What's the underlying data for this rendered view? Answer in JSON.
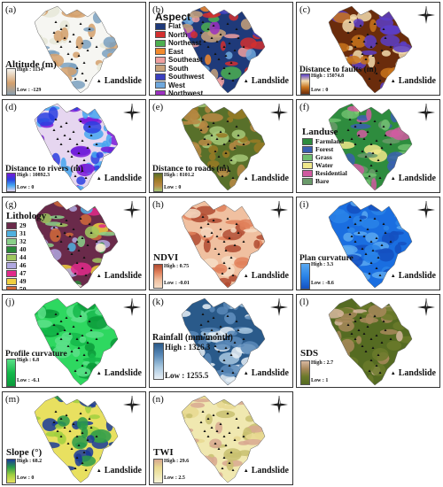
{
  "landslide_label": "Landslide",
  "panels": [
    {
      "id": "a",
      "label": "(a)",
      "title": "Altitude (m)",
      "high": "High : 1134",
      "low": "Low : -129",
      "colors": [
        "#f6f6f2",
        "#e6e8d8",
        "#d4a06c",
        "#7aa0c0"
      ]
    },
    {
      "id": "b",
      "label": "(b)",
      "legend_title": "Aspect",
      "classes": [
        {
          "name": "Flat",
          "color": "#1f3a7a"
        },
        {
          "name": "North",
          "color": "#d32f2f"
        },
        {
          "name": "Northeast",
          "color": "#4caf50"
        },
        {
          "name": "East",
          "color": "#f28a2e"
        },
        {
          "name": "Southeast",
          "color": "#f0a0a0"
        },
        {
          "name": "South",
          "color": "#c8a27a"
        },
        {
          "name": "Southwest",
          "color": "#3a3fbf"
        },
        {
          "name": "West",
          "color": "#6fa8dc"
        },
        {
          "name": "Northwest",
          "color": "#9b30c0"
        }
      ]
    },
    {
      "id": "c",
      "label": "(c)",
      "title": "Distance to faults (m)",
      "high": "High : 15074.8",
      "low": "Low : 0",
      "colors": [
        "#6a2c0c",
        "#c8741c",
        "#f2dcae",
        "#5a3ec8"
      ]
    },
    {
      "id": "d",
      "label": "(d)",
      "title": "Distance to rivers (m)",
      "high": "High : 10892.3",
      "low": "Low : 0",
      "colors": [
        "#e6d6f0",
        "#44a6f0",
        "#2a3ee0",
        "#7a1ad8"
      ]
    },
    {
      "id": "e",
      "label": "(e)",
      "title": "Distance to roads (m)",
      "high": "High : 8101.2",
      "low": "Low : 0",
      "colors": [
        "#58702a",
        "#9a7a24",
        "#b88844",
        "#a6c878"
      ]
    },
    {
      "id": "f",
      "label": "(f)",
      "legend_title": "Landuse",
      "classes": [
        {
          "name": "Farmland",
          "color": "#2e8c3e"
        },
        {
          "name": "Forest",
          "color": "#3a5fb0"
        },
        {
          "name": "Grass",
          "color": "#6fbf6f"
        },
        {
          "name": "Water",
          "color": "#f0e88a"
        },
        {
          "name": "Residential",
          "color": "#d05aa0"
        },
        {
          "name": "Bare",
          "color": "#6a9a6a"
        }
      ]
    },
    {
      "id": "g",
      "label": "(g)",
      "legend_title": "Lithology",
      "classes": [
        {
          "name": "29",
          "color": "#6a2a4a"
        },
        {
          "name": "31",
          "color": "#4fb0e0"
        },
        {
          "name": "32",
          "color": "#8ad08a"
        },
        {
          "name": "40",
          "color": "#2a8a3a"
        },
        {
          "name": "44",
          "color": "#a0c860"
        },
        {
          "name": "46",
          "color": "#b0a8e0"
        },
        {
          "name": "47",
          "color": "#e02a8a"
        },
        {
          "name": "49",
          "color": "#f0d040"
        },
        {
          "name": "50",
          "color": "#d06a3a"
        },
        {
          "name": "52",
          "color": "#f5efe0"
        }
      ]
    },
    {
      "id": "h",
      "label": "(h)",
      "title": "NDVI",
      "high": "High : 0.75",
      "low": "Low : -0.01",
      "colors": [
        "#f0c0a0",
        "#e0805a",
        "#b04a30",
        "#f6ddc6"
      ]
    },
    {
      "id": "i",
      "label": "(i)",
      "title": "Plan curvature",
      "high": "High : 3.3",
      "low": "Low : -8.6",
      "colors": [
        "#1a6ee0",
        "#2a84e8",
        "#1450c0",
        "#5aa8f0"
      ]
    },
    {
      "id": "j",
      "label": "(j)",
      "title": "Profile curvature",
      "high": "High : 6.8",
      "low": "Low : -6.1",
      "colors": [
        "#2ed860",
        "#14b84a",
        "#0a9a3a",
        "#5ae088"
      ]
    },
    {
      "id": "k",
      "label": "(k)",
      "title": "Rainfall (mm/month)",
      "high": "High : 1326.3",
      "low": "Low : 1255.5",
      "colors": [
        "#2a5a8a",
        "#5a8ab8",
        "#a8c8e0",
        "#e8f0f6"
      ]
    },
    {
      "id": "l",
      "label": "(l)",
      "title": "SDS",
      "high": "High : 2.7",
      "low": "Low : 1",
      "colors": [
        "#556b22",
        "#6b7a2a",
        "#a8885a",
        "#d8b8a0"
      ]
    },
    {
      "id": "m",
      "label": "(m)",
      "title": "Slope (°)",
      "high": "High : 68.2",
      "low": "Low : 0",
      "colors": [
        "#e8e060",
        "#a0d040",
        "#2a9a4a",
        "#1a3a9a"
      ]
    },
    {
      "id": "n",
      "label": "(n)",
      "title": "TWI",
      "high": "High : 29.6",
      "low": "Low : 2.5",
      "colors": [
        "#f0e8b0",
        "#e8d890",
        "#c8c070",
        "#d8a890"
      ]
    }
  ]
}
